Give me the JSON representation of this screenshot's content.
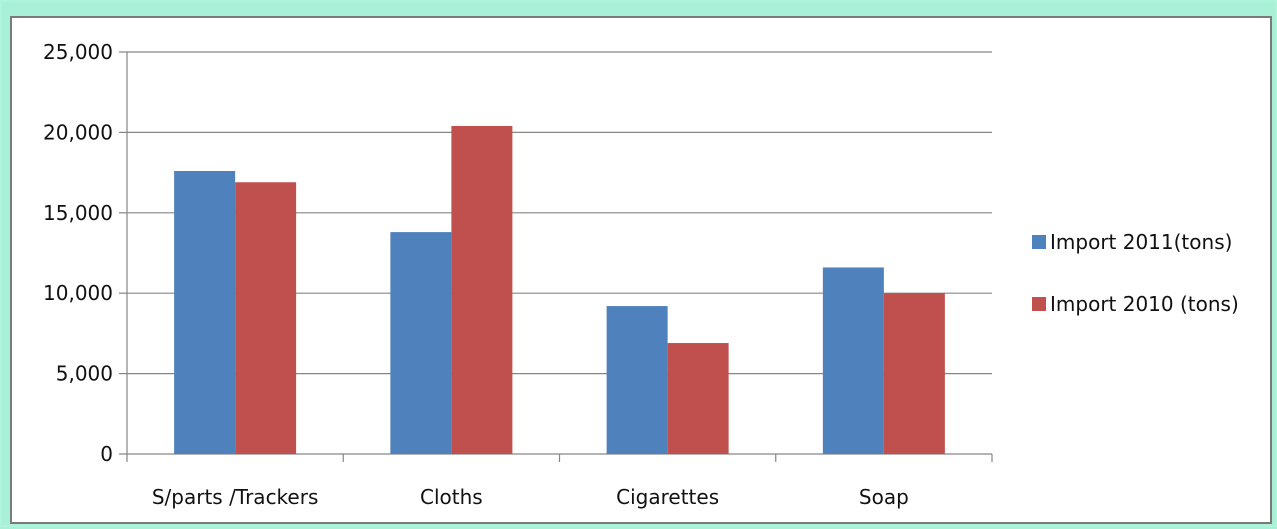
{
  "chart_data": {
    "type": "bar",
    "categories": [
      "S/parts /Trackers",
      "Cloths",
      "Cigarettes",
      "Soap"
    ],
    "series": [
      {
        "name": "Import  2011(tons)",
        "values": [
          17600,
          13800,
          9200,
          11600
        ],
        "color": "#4f81bd"
      },
      {
        "name": "Import  2010 (tons)",
        "values": [
          16900,
          20400,
          6900,
          10000
        ],
        "color": "#c0504d"
      }
    ],
    "y_ticks": [
      "0",
      "5,000",
      "10,000",
      "15,000",
      "20,000",
      "25,000"
    ],
    "ylim": [
      0,
      25000
    ],
    "grid": true,
    "legend_position": "right"
  }
}
